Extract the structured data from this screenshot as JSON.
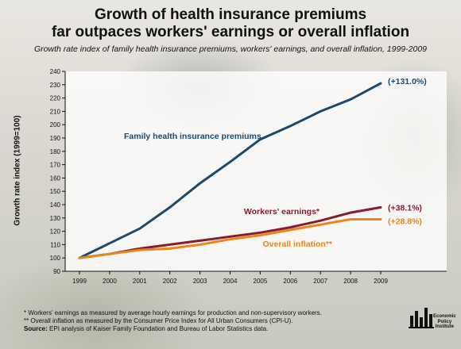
{
  "header": {
    "title_line1": "Growth of health insurance premiums",
    "title_line2": "far outpaces workers' earnings or overall inflation",
    "subtitle": "Growth rate index of family health insurance premiums, workers' earnings, and overall inflation, 1999-2009"
  },
  "footnotes": {
    "note1": "* Workers' earnings as measured by average hourly earnings for production and non-supervisory workers.",
    "note2": "** Overall inflation as measured by the Consumer Price Index for All Urban Consumers (CPI-U).",
    "source_label": "Source:",
    "source_text": " EPI analysis of Kaiser Family Foundation and Bureau of Labor Statistics data."
  },
  "logo": {
    "line1": "Economic",
    "line2": "Policy",
    "line3": "Institute"
  },
  "chart_data": {
    "type": "line",
    "title": "Growth of health insurance premiums far outpaces workers' earnings or overall inflation",
    "subtitle": "Growth rate index of family health insurance premiums, workers' earnings, and overall inflation, 1999-2009",
    "xlabel": "",
    "ylabel": "Growth rate index (1999=100)",
    "x": [
      1999,
      2000,
      2001,
      2002,
      2003,
      2004,
      2005,
      2006,
      2007,
      2008,
      2009
    ],
    "ylim": [
      90,
      240
    ],
    "yticks": [
      90,
      100,
      110,
      120,
      130,
      140,
      150,
      160,
      170,
      180,
      190,
      200,
      210,
      220,
      230,
      240
    ],
    "grid": false,
    "legend": "none",
    "series": [
      {
        "name": "Family health insurance premiums",
        "color": "#1a4a6e",
        "values": [
          100,
          111,
          122,
          138,
          156,
          172,
          189,
          199,
          210,
          219,
          231
        ],
        "end_label": "(+131.0%)"
      },
      {
        "name": "Workers' earnings*",
        "color": "#8b1a2b",
        "values": [
          100,
          103,
          107,
          110,
          113,
          116,
          119,
          123,
          128,
          134,
          138
        ],
        "end_label": "(+38.1%)"
      },
      {
        "name": "Overall inflation**",
        "color": "#e8861a",
        "values": [
          100,
          103,
          106,
          107,
          110,
          114,
          117,
          121,
          125,
          129,
          129
        ],
        "end_label": "(+28.8%)"
      }
    ]
  }
}
